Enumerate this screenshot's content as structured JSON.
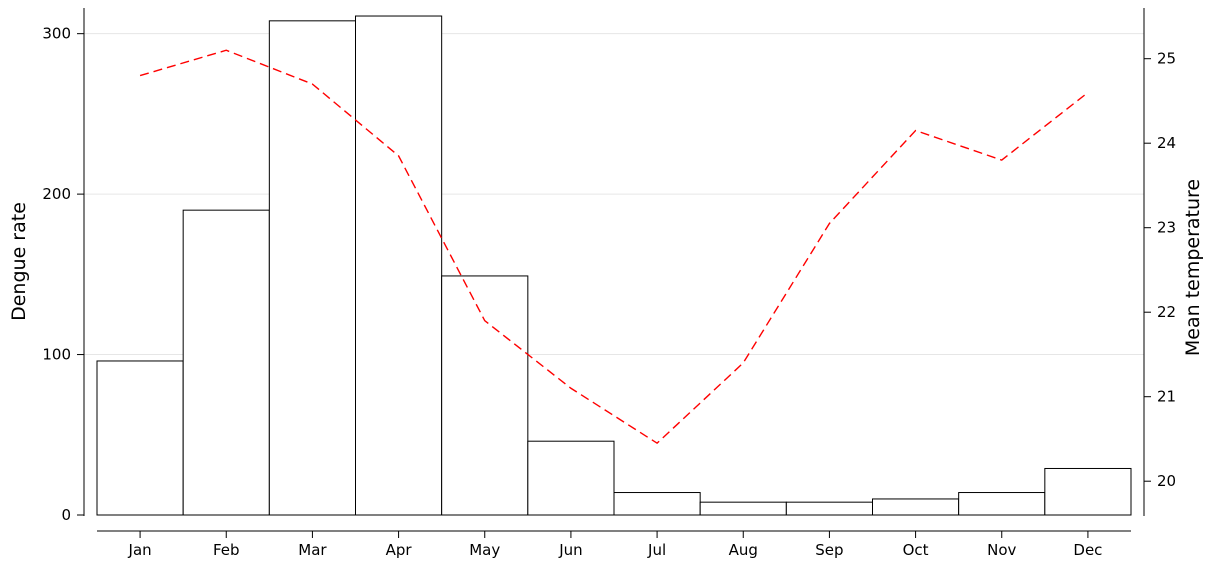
{
  "chart_data": {
    "type": "bar",
    "categories": [
      "Jan",
      "Feb",
      "Mar",
      "Apr",
      "May",
      "Jun",
      "Jul",
      "Aug",
      "Sep",
      "Oct",
      "Nov",
      "Dec"
    ],
    "series": [
      {
        "values": [
          96,
          190,
          308,
          311,
          149,
          46,
          14,
          8,
          8,
          10,
          14,
          29
        ],
        "axis": "left",
        "render": "bar",
        "color": "#000000",
        "fill": "#ffffff"
      },
      {
        "values": [
          24.8,
          25.1,
          24.7,
          23.85,
          21.9,
          21.1,
          20.45,
          21.4,
          23.05,
          24.15,
          23.8,
          24.6
        ],
        "axis": "right",
        "render": "dashed-line",
        "color": "#ff0000"
      }
    ],
    "ylabel": "Dengue rate",
    "ylabel_right": "Mean temperature",
    "ylim": [
      0,
      316
    ],
    "ylim_right": [
      19.6,
      25.6
    ],
    "yticks": [
      0,
      100,
      200,
      300
    ],
    "yticks_right": [
      20,
      21,
      22,
      23,
      24,
      25
    ],
    "grid": true
  }
}
